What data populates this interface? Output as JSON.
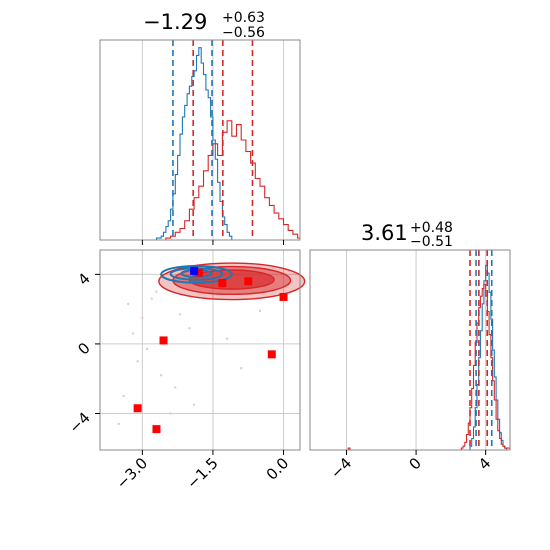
{
  "chart_data": {
    "type": "corner",
    "grid": true,
    "colors": {
      "blue": "#1f77b4",
      "red": "#d62728",
      "marker_red": "#ff0000",
      "marker_blue": "#0000ff"
    },
    "params": [
      {
        "title_main": "−1.29",
        "title_sup": "+0.63",
        "title_sub": "−0.56",
        "xlim": [
          -3.9,
          0.35
        ],
        "xticks": [
          -3.0,
          -1.5,
          0.0
        ],
        "xtick_labels": [
          "−3.0",
          "−1.5",
          "0.0"
        ],
        "quantiles_blue": [
          -2.35,
          -1.52
        ],
        "quantiles_red": [
          -1.92,
          -1.29,
          -0.66
        ],
        "hist_blue": [
          [
            -3.9,
            0
          ],
          [
            -2.8,
            0
          ],
          [
            -2.7,
            1
          ],
          [
            -2.6,
            2
          ],
          [
            -2.55,
            4
          ],
          [
            -2.5,
            7
          ],
          [
            -2.45,
            10
          ],
          [
            -2.4,
            16
          ],
          [
            -2.35,
            24
          ],
          [
            -2.3,
            34
          ],
          [
            -2.25,
            44
          ],
          [
            -2.2,
            55
          ],
          [
            -2.15,
            64
          ],
          [
            -2.1,
            70
          ],
          [
            -2.05,
            76
          ],
          [
            -2.0,
            80
          ],
          [
            -1.95,
            85
          ],
          [
            -1.9,
            88
          ],
          [
            -1.85,
            96
          ],
          [
            -1.8,
            100
          ],
          [
            -1.75,
            92
          ],
          [
            -1.7,
            86
          ],
          [
            -1.65,
            78
          ],
          [
            -1.6,
            74
          ],
          [
            -1.55,
            64
          ],
          [
            -1.5,
            52
          ],
          [
            -1.45,
            42
          ],
          [
            -1.4,
            30
          ],
          [
            -1.35,
            20
          ],
          [
            -1.3,
            12
          ],
          [
            -1.25,
            8
          ],
          [
            -1.2,
            4
          ],
          [
            -1.15,
            2
          ],
          [
            -1.1,
            0
          ],
          [
            0.35,
            0
          ]
        ],
        "hist_red": [
          [
            -3.9,
            0
          ],
          [
            -2.6,
            0
          ],
          [
            -2.5,
            1
          ],
          [
            -2.4,
            2
          ],
          [
            -2.3,
            4
          ],
          [
            -2.2,
            6
          ],
          [
            -2.1,
            10
          ],
          [
            -2.0,
            16
          ],
          [
            -1.9,
            22
          ],
          [
            -1.8,
            28
          ],
          [
            -1.7,
            36
          ],
          [
            -1.6,
            44
          ],
          [
            -1.5,
            50
          ],
          [
            -1.4,
            44
          ],
          [
            -1.3,
            56
          ],
          [
            -1.2,
            62
          ],
          [
            -1.1,
            54
          ],
          [
            -1.0,
            60
          ],
          [
            -0.9,
            52
          ],
          [
            -0.8,
            46
          ],
          [
            -0.7,
            40
          ],
          [
            -0.6,
            32
          ],
          [
            -0.5,
            28
          ],
          [
            -0.4,
            22
          ],
          [
            -0.3,
            18
          ],
          [
            -0.2,
            14
          ],
          [
            -0.1,
            11
          ],
          [
            0.0,
            8
          ],
          [
            0.1,
            5
          ],
          [
            0.2,
            3
          ],
          [
            0.3,
            1
          ],
          [
            0.35,
            1
          ]
        ]
      },
      {
        "title_main": "3.61",
        "title_sup": "+0.48",
        "title_sub": "−0.51",
        "xlim": [
          -6.1,
          5.4
        ],
        "xticks": [
          -4,
          0,
          4
        ],
        "xtick_labels": [
          "−4",
          "0",
          "4"
        ],
        "quantiles_blue": [
          3.45,
          4.35
        ],
        "quantiles_red": [
          3.1,
          3.61,
          4.09
        ],
        "hist_blue": [
          [
            -6.1,
            0
          ],
          [
            3.0,
            0
          ],
          [
            3.1,
            2
          ],
          [
            3.2,
            6
          ],
          [
            3.3,
            12
          ],
          [
            3.4,
            22
          ],
          [
            3.5,
            34
          ],
          [
            3.6,
            48
          ],
          [
            3.7,
            62
          ],
          [
            3.8,
            76
          ],
          [
            3.9,
            88
          ],
          [
            4.0,
            96
          ],
          [
            4.1,
            92
          ],
          [
            4.2,
            82
          ],
          [
            4.3,
            68
          ],
          [
            4.4,
            52
          ],
          [
            4.5,
            38
          ],
          [
            4.6,
            26
          ],
          [
            4.7,
            16
          ],
          [
            4.8,
            9
          ],
          [
            4.9,
            5
          ],
          [
            5.0,
            2
          ],
          [
            5.1,
            1
          ],
          [
            5.2,
            0
          ],
          [
            5.4,
            0
          ]
        ],
        "hist_red": [
          [
            -6.1,
            0
          ],
          [
            -4.0,
            0
          ],
          [
            -3.9,
            1
          ],
          [
            -3.8,
            0
          ],
          [
            2.5,
            0
          ],
          [
            2.6,
            1
          ],
          [
            2.7,
            2
          ],
          [
            2.8,
            4
          ],
          [
            2.9,
            8
          ],
          [
            3.0,
            14
          ],
          [
            3.1,
            22
          ],
          [
            3.2,
            32
          ],
          [
            3.3,
            44
          ],
          [
            3.4,
            56
          ],
          [
            3.5,
            66
          ],
          [
            3.6,
            74
          ],
          [
            3.7,
            80
          ],
          [
            3.8,
            84
          ],
          [
            3.9,
            86
          ],
          [
            4.0,
            80
          ],
          [
            4.1,
            72
          ],
          [
            4.2,
            60
          ],
          [
            4.3,
            48
          ],
          [
            4.4,
            36
          ],
          [
            4.5,
            26
          ],
          [
            4.6,
            16
          ],
          [
            4.7,
            10
          ],
          [
            4.8,
            6
          ],
          [
            4.9,
            3
          ],
          [
            5.0,
            2
          ],
          [
            5.1,
            1
          ],
          [
            5.4,
            0
          ]
        ]
      }
    ],
    "scatter_panel": {
      "xlim": [
        -3.9,
        0.35
      ],
      "ylim": [
        -6.1,
        5.4
      ],
      "xticks": [
        -3.0,
        -1.5,
        0.0
      ],
      "yticks": [
        -4,
        0,
        4
      ],
      "ytick_labels": [
        "−4",
        "0",
        "4"
      ],
      "red_contours": [
        {
          "cx": -1.1,
          "cy": 3.6,
          "rx": 1.55,
          "ry": 1.05,
          "opacity": 0.28
        },
        {
          "cx": -1.1,
          "cy": 3.65,
          "rx": 1.25,
          "ry": 0.8,
          "opacity": 0.45
        },
        {
          "cx": -1.1,
          "cy": 3.7,
          "rx": 0.9,
          "ry": 0.55,
          "opacity": 0.65
        }
      ],
      "blue_contours": [
        {
          "cx": -1.85,
          "cy": 4.0,
          "rx": 0.75,
          "ry": 0.48
        },
        {
          "cx": -1.85,
          "cy": 4.02,
          "rx": 0.55,
          "ry": 0.33
        },
        {
          "cx": -1.85,
          "cy": 4.05,
          "rx": 0.32,
          "ry": 0.2
        }
      ],
      "red_markers": [
        [
          -2.55,
          0.2
        ],
        [
          -3.1,
          -3.7
        ],
        [
          -2.7,
          -4.9
        ],
        [
          -0.25,
          -0.6
        ],
        [
          0.0,
          2.7
        ],
        [
          -0.75,
          3.6
        ],
        [
          -1.3,
          3.5
        ],
        [
          -1.8,
          4.1
        ]
      ],
      "blue_markers": [
        [
          -1.9,
          4.2
        ]
      ],
      "sample_points": [
        [
          -3.2,
          0.6
        ],
        [
          -2.9,
          -0.3
        ],
        [
          -2.6,
          -1.8
        ],
        [
          -3.4,
          -3.0
        ],
        [
          -2.3,
          -2.5
        ],
        [
          -3.0,
          1.5
        ],
        [
          -2.0,
          0.9
        ],
        [
          -2.8,
          2.6
        ],
        [
          -3.5,
          -4.6
        ],
        [
          -2.4,
          -4.0
        ],
        [
          -1.2,
          0.3
        ],
        [
          -0.5,
          1.9
        ],
        [
          -2.7,
          3.0
        ],
        [
          -3.1,
          -1.0
        ],
        [
          -1.9,
          -3.5
        ],
        [
          -2.2,
          1.7
        ],
        [
          -0.9,
          -1.4
        ],
        [
          -3.3,
          2.3
        ]
      ]
    }
  }
}
